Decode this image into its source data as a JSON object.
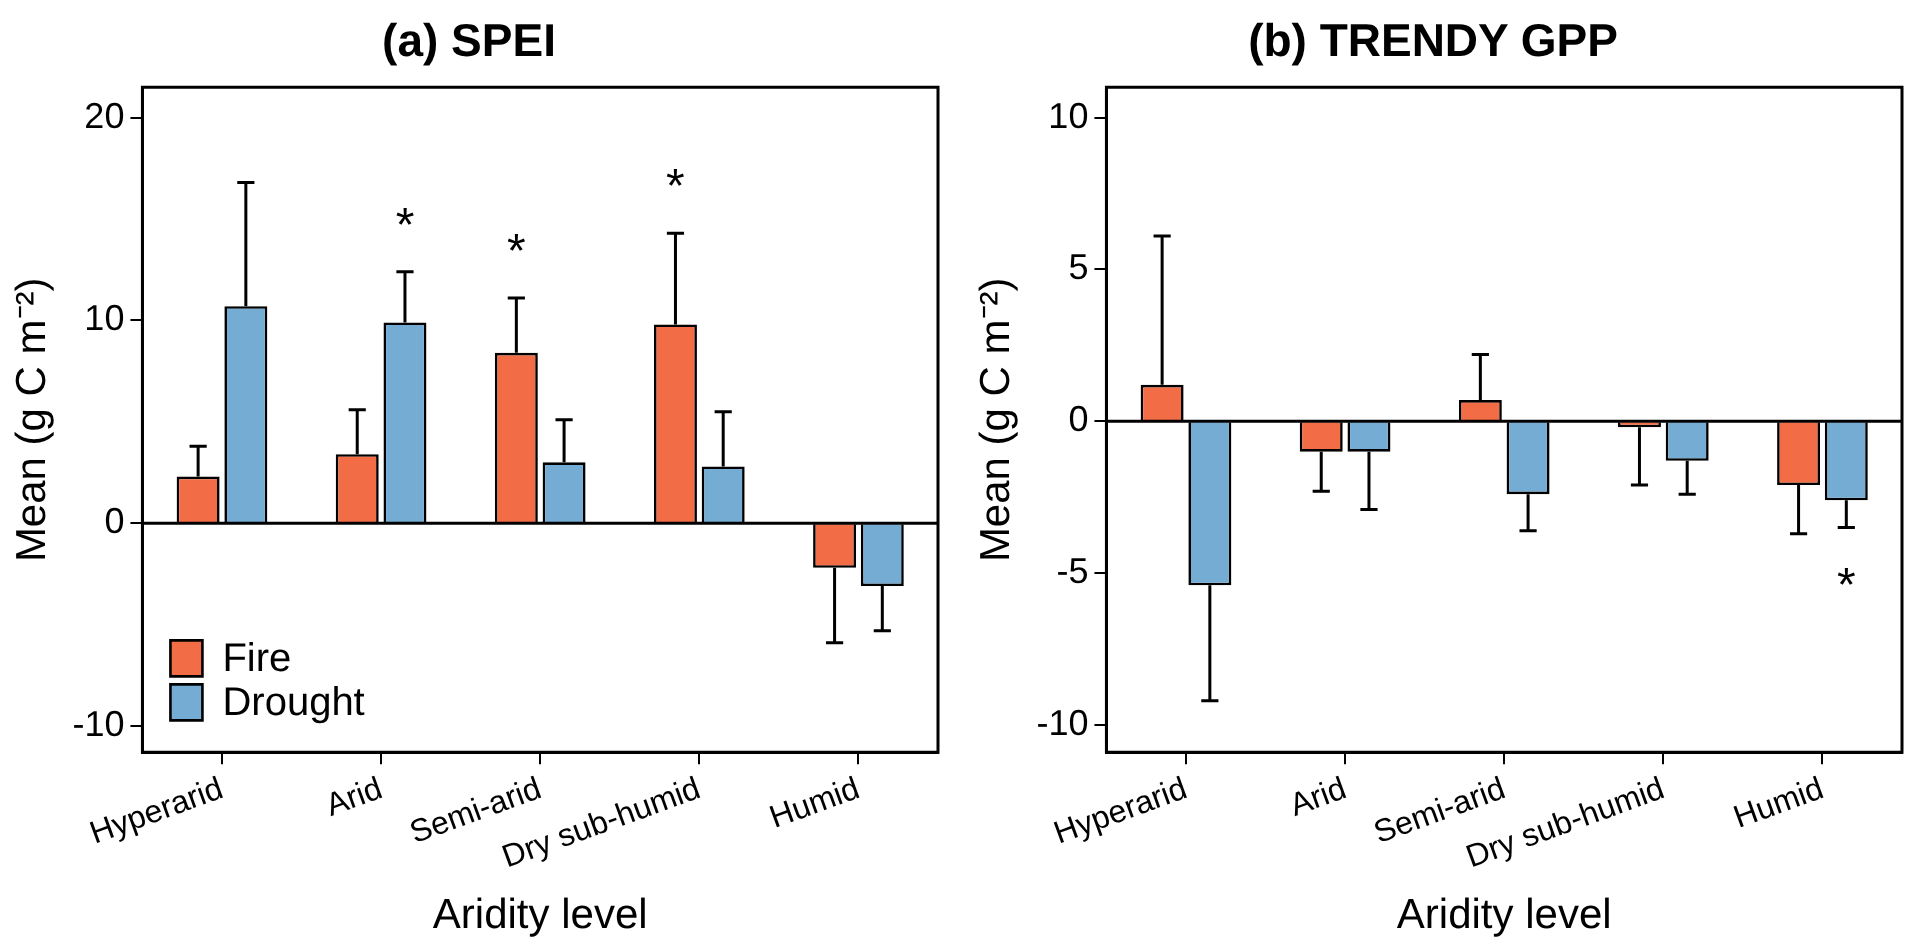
{
  "chart_data": [
    {
      "type": "bar",
      "title": "(a) SPEI",
      "xlabel": "Aridity level",
      "ylabel": "Mean (g C m⁻²)",
      "categories": [
        "Hyperarid",
        "Arid",
        "Semi-arid",
        "Dry sub-humid",
        "Humid"
      ],
      "series": [
        {
          "name": "Fire",
          "color": "#f26d45",
          "values": [
            2.3,
            3.4,
            8.4,
            9.8,
            -2.2
          ],
          "errors": [
            [
              2.3,
              3.8
            ],
            [
              3.4,
              5.6
            ],
            [
              8.4,
              11.1
            ],
            [
              9.8,
              14.3
            ],
            [
              -5.9,
              -2.2
            ]
          ],
          "value_labels": [
            null,
            null,
            "*",
            "*",
            null
          ]
        },
        {
          "name": "Drought",
          "color": "#74acd3",
          "values": [
            10.7,
            9.9,
            3.0,
            2.8,
            -3.1
          ],
          "errors": [
            [
              10.7,
              16.8
            ],
            [
              9.9,
              12.4
            ],
            [
              3.0,
              5.1
            ],
            [
              2.8,
              5.5
            ],
            [
              -5.3,
              -3.1
            ]
          ],
          "value_labels": [
            null,
            "*",
            null,
            null,
            null
          ]
        }
      ],
      "ylim": [
        -11.3,
        21.5
      ],
      "yticks": [
        -10,
        0,
        10,
        20
      ],
      "legend": "bottom left",
      "ref_lines": [
        {
          "axis": "y",
          "value": 0
        }
      ]
    },
    {
      "type": "bar",
      "title": "(b) TRENDY GPP",
      "xlabel": "Aridity level",
      "ylabel": "Mean (g C m⁻²)",
      "categories": [
        "Hyperarid",
        "Arid",
        "Semi-arid",
        "Dry sub-humid",
        "Humid"
      ],
      "series": [
        {
          "color": "#f26d45",
          "values": [
            1.2,
            -1.0,
            0.7,
            -0.2,
            -2.1
          ],
          "errors": [
            [
              1.2,
              6.1
            ],
            [
              -2.3,
              -1.0
            ],
            [
              0.7,
              2.2
            ],
            [
              -2.1,
              -0.2
            ],
            [
              -3.7,
              -2.1
            ]
          ]
        },
        {
          "color": "#74acd3",
          "values": [
            -5.4,
            -1.0,
            -2.4,
            -1.3,
            -2.6
          ],
          "errors": [
            [
              -9.2,
              -5.4
            ],
            [
              -2.9,
              -1.0
            ],
            [
              -3.6,
              -2.4
            ],
            [
              -2.4,
              -1.3
            ],
            [
              -3.5,
              -2.6
            ]
          ],
          "value_labels": [
            null,
            null,
            null,
            null,
            "*"
          ]
        }
      ],
      "ylim": [
        -10.9,
        11
      ],
      "yticks": [
        -10,
        -5,
        0,
        5,
        10
      ],
      "ref_lines": [
        {
          "axis": "y",
          "value": 0
        }
      ]
    }
  ]
}
